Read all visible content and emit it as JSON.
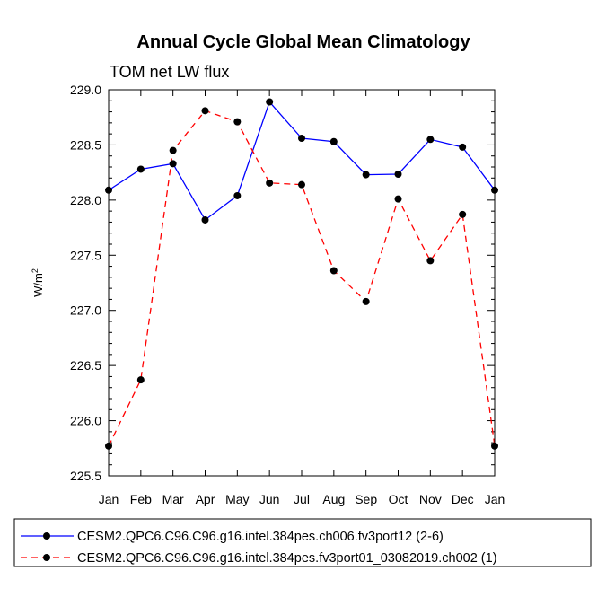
{
  "chart_data": {
    "type": "line",
    "title": "Annual Cycle Global Mean Climatology",
    "subtitle": "TOM net LW flux",
    "ylabel_base": "W/m",
    "ylabel_sup": "2",
    "xlabel": "",
    "categories": [
      "Jan",
      "Feb",
      "Mar",
      "Apr",
      "May",
      "Jun",
      "Jul",
      "Aug",
      "Sep",
      "Oct",
      "Nov",
      "Dec",
      "Jan"
    ],
    "ylim": [
      225.5,
      229.0
    ],
    "yticks": [
      "229.0",
      "228.5",
      "228.0",
      "227.5",
      "227.0",
      "226.5",
      "226.0",
      "225.5"
    ],
    "grid": false,
    "legend_position": "bottom",
    "series": [
      {
        "name": "CESM2.QPC6.C96.C96.g16.intel.384pes.ch006.fv3port12 (2-6)",
        "color": "#0000ff",
        "style": "solid",
        "values": [
          228.09,
          228.28,
          228.33,
          227.82,
          228.04,
          228.89,
          228.56,
          228.53,
          228.23,
          228.235,
          228.55,
          228.48,
          228.09
        ]
      },
      {
        "name": "CESM2.QPC6.C96.C96.g16.intel.384pes.fv3port01_03082019.ch002 (1)",
        "color": "#ff0000",
        "style": "dashed",
        "values": [
          225.77,
          226.37,
          228.45,
          228.81,
          228.71,
          228.155,
          228.14,
          227.36,
          227.08,
          228.01,
          227.45,
          227.87,
          225.77
        ]
      }
    ]
  }
}
